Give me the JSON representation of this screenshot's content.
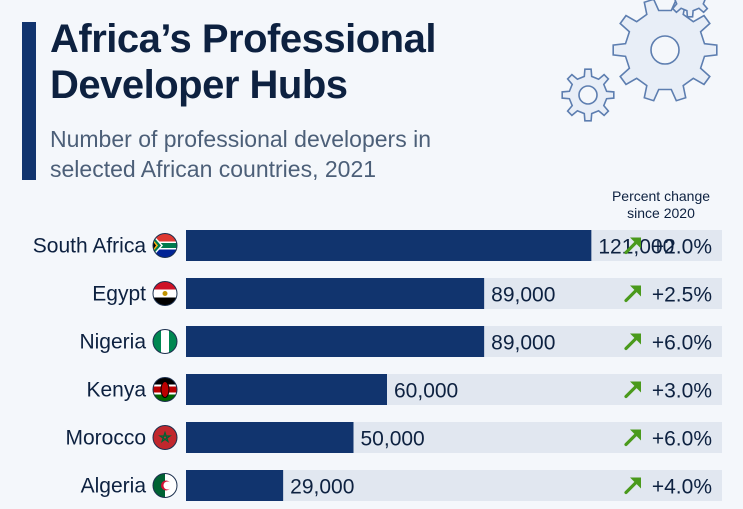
{
  "header": {
    "title": "Africa’s Professional Developer Hubs",
    "subtitle": "Number of professional developers in selected African countries, 2021",
    "pct_change_header": "Percent change since 2020"
  },
  "colors": {
    "accent": "#11346e",
    "bar": "#11346e",
    "track": "#e1e7f0",
    "arrow": "#4a9a1c",
    "text": "#0d2140"
  },
  "chart_data": {
    "type": "bar",
    "orientation": "horizontal",
    "title": "Africa’s Professional Developer Hubs",
    "subtitle": "Number of professional developers in selected African countries, 2021",
    "categories": [
      "South Africa",
      "Egypt",
      "Nigeria",
      "Kenya",
      "Morocco",
      "Algeria"
    ],
    "values": [
      121000,
      89000,
      89000,
      60000,
      50000,
      29000
    ],
    "value_labels": [
      "121,000",
      "89,000",
      "89,000",
      "60,000",
      "50,000",
      "29,000"
    ],
    "percent_change_since_2020": [
      "+2.0%",
      "+2.5%",
      "+6.0%",
      "+3.0%",
      "+6.0%",
      "+4.0%"
    ],
    "flag_icons": [
      "south-africa-flag-icon",
      "egypt-flag-icon",
      "nigeria-flag-icon",
      "kenya-flag-icon",
      "morocco-flag-icon",
      "algeria-flag-icon"
    ],
    "xlim": [
      0,
      160000
    ],
    "grid": false,
    "legend": "none"
  }
}
